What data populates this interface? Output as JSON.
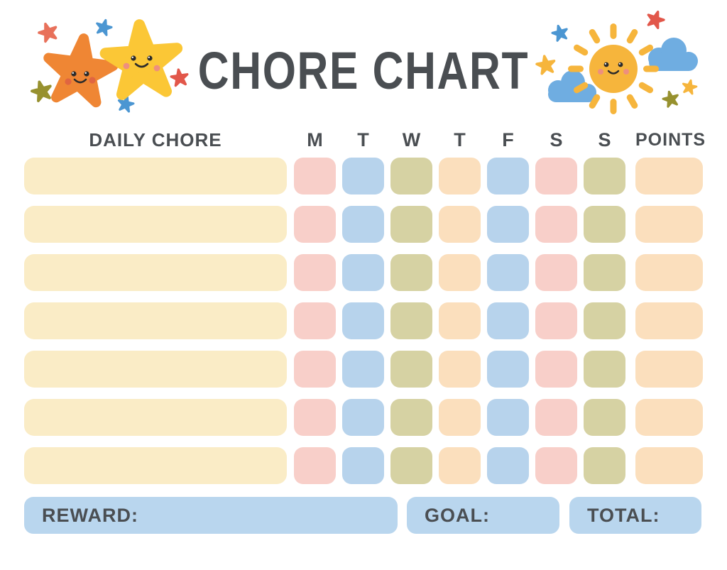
{
  "page": {
    "title": "CHORE CHART"
  },
  "table": {
    "chore_header": "DAILY CHORE",
    "day_headers": [
      "M",
      "T",
      "W",
      "T",
      "F",
      "S",
      "S"
    ],
    "points_header": "POINTS",
    "row_count": 7,
    "chore_cell_color": "cream",
    "cell_pattern": [
      "pink",
      "blue",
      "olive",
      "peach",
      "blue",
      "pink",
      "olive"
    ],
    "points_cell_color": "peach",
    "cell_values": [
      "",
      "",
      "",
      "",
      "",
      "",
      ""
    ]
  },
  "footer": {
    "reward_label": "REWARD:",
    "goal_label": "GOAL:",
    "total_label": "TOTAL:"
  },
  "icons": {
    "left_decoration": "two-smiling-stars-icon",
    "right_decoration": "smiling-sun-with-clouds-icon"
  },
  "colors": {
    "text": "#4A4E52",
    "cream": "#FAECC6",
    "pink": "#F8CFC9",
    "blue": "#B7D3EC",
    "olive": "#D6D2A3",
    "peach": "#FBDFBD",
    "footer_blue": "#B9D6EE",
    "star_orange": "#EF8634",
    "star_yellow": "#FBC736",
    "sun_yellow": "#F6B53C",
    "cloud_blue": "#6FADE1",
    "accent_red": "#E2574A",
    "accent_coral": "#E8715B",
    "accent_blue": "#4B96D2",
    "accent_olive": "#97912F",
    "cheek_orange": "#E06540",
    "cheek_pink": "#EE8F7E",
    "face_dark": "#2B2B2B"
  }
}
